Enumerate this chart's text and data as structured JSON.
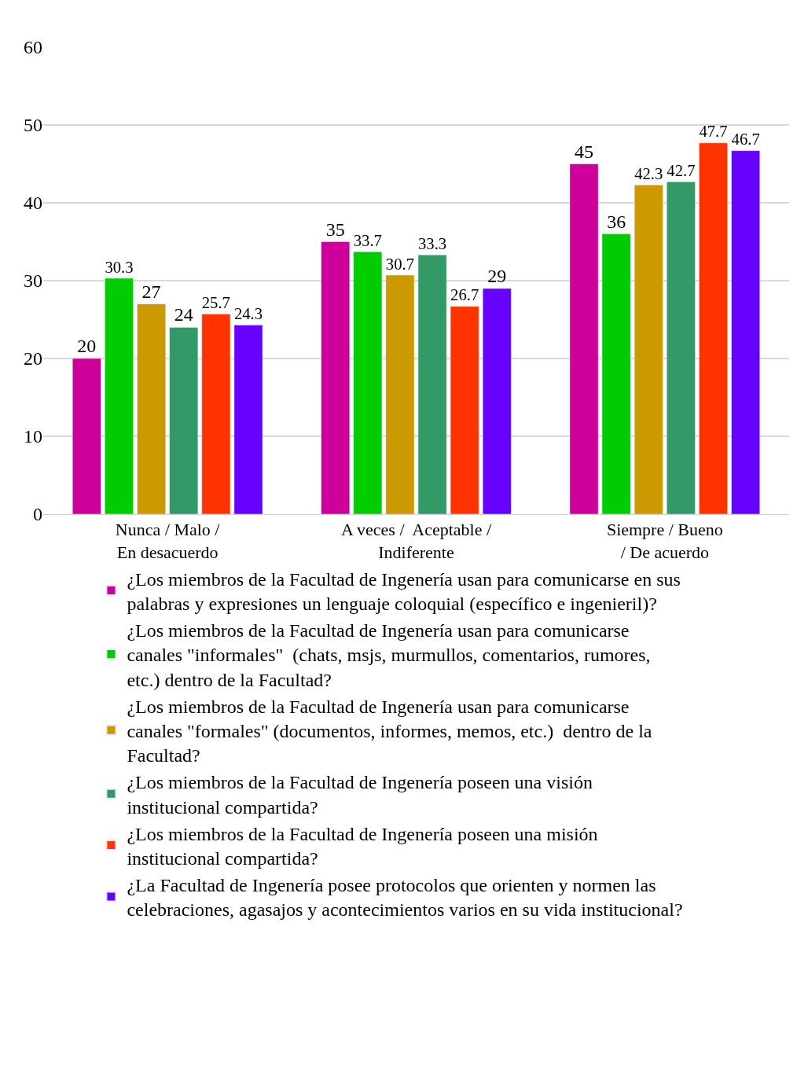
{
  "chart_data": {
    "type": "bar",
    "categories": [
      "Nunca / Malo /\nEn desacuerdo",
      "A veces /  Aceptable /\nIndiferente",
      "Siempre / Bueno\n/ De acuerdo"
    ],
    "series": [
      {
        "name": "¿Los miembros de la Facultad de Ingenería usan para comunicarse en sus\npalabras y expresiones un lenguaje coloquial (específico e ingenieril)?",
        "color": "#cc0099",
        "values": [
          20,
          35,
          45
        ]
      },
      {
        "name": "¿Los miembros de la Facultad de Ingenería usan para comunicarse\ncanales \"informales\"  (chats, msjs, murmullos, comentarios, rumores,\netc.) dentro de la Facultad?",
        "color": "#00cc00",
        "values": [
          30.3,
          33.7,
          36
        ]
      },
      {
        "name": "¿Los miembros de la Facultad de Ingenería usan para comunicarse\ncanales \"formales\" (documentos, informes, memos, etc.)  dentro de la\nFacultad?",
        "color": "#cc9900",
        "values": [
          27,
          30.7,
          42.3
        ]
      },
      {
        "name": "¿Los miembros de la Facultad de Ingenería poseen una visión\ninstitucional compartida?",
        "color": "#339966",
        "values": [
          24,
          33.3,
          42.7
        ]
      },
      {
        "name": "¿Los miembros de la Facultad de Ingenería poseen una misión\ninstitucional compartida?",
        "color": "#ff3300",
        "values": [
          25.7,
          26.7,
          47.7
        ]
      },
      {
        "name": "¿La Facultad de Ingenería posee protocolos que orienten y normen las\ncelebraciones, agasajos y acontecimientos varios en su vida institucional?",
        "color": "#6600ff",
        "values": [
          24.3,
          29,
          46.7
        ]
      }
    ],
    "ylim": [
      0,
      60
    ],
    "yticks": [
      0,
      10,
      20,
      30,
      40,
      50,
      60
    ],
    "grid": "y",
    "legend": "bottom",
    "data_labels": true
  }
}
